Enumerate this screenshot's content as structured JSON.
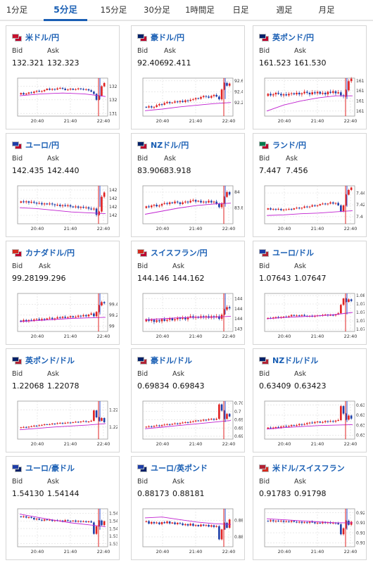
{
  "tabs": [
    {
      "label": "1分足",
      "active": false
    },
    {
      "label": "5分足",
      "active": true
    },
    {
      "label": "15分足",
      "active": false
    },
    {
      "label": "30分足",
      "active": false
    },
    {
      "label": "1時間足",
      "active": false
    },
    {
      "label": "日足",
      "active": false
    },
    {
      "label": "週足",
      "active": false
    },
    {
      "label": "月足",
      "active": false
    }
  ],
  "bid_label": "Bid",
  "ask_label": "Ask",
  "colors": {
    "accent": "#1a5fb4",
    "up": "#e02020",
    "down": "#1f3fa8",
    "ma": "#c020d0",
    "marker_red": "#e02020",
    "marker_blue": "#3050d0"
  },
  "pairs": [
    {
      "name": "米ドル/円",
      "bid": "132.321",
      "ask": "132.323",
      "flag": [
        "#c8102e",
        "#bc002d"
      ],
      "chart_data": {
        "type": "candlestick",
        "x_ticks": [
          "20:40",
          "21:40",
          "22:40"
        ],
        "y_ticks": [
          131.5,
          132,
          132.5
        ],
        "ylim": [
          131.4,
          132.8
        ],
        "start": 132.2,
        "moves": [
          0.05,
          -0.05,
          0.03,
          0.04,
          -0.02,
          0.05,
          0.03,
          -0.03,
          0.02,
          0.04,
          0.05,
          -0.04,
          0.03,
          -0.02,
          0.04,
          0.02,
          -0.03,
          -0.05,
          0.02,
          0.03,
          -0.04,
          0.02,
          0.03,
          -0.02,
          -0.03,
          0.02,
          -0.04,
          -0.05,
          -0.08,
          -0.22,
          0.15,
          0.35,
          0.12
        ],
        "vol": 0.03,
        "ma": [
          132.15,
          132.22,
          132.25,
          132.22,
          132.12
        ]
      }
    },
    {
      "name": "豪ドル/円",
      "bid": "92.406",
      "ask": "92.411",
      "flag": [
        "#012169",
        "#bc002d"
      ],
      "chart_data": {
        "type": "candlestick",
        "x_ticks": [
          "20:40",
          "21:40",
          "22:40"
        ],
        "y_ticks": [
          92.2,
          92.4,
          92.6
        ],
        "ylim": [
          91.95,
          92.65
        ],
        "start": 92.12,
        "moves": [
          -0.01,
          0.02,
          -0.02,
          0.01,
          0.03,
          0.02,
          -0.01,
          0.03,
          0.02,
          -0.02,
          0.01,
          0.02,
          -0.01,
          0.02,
          -0.02,
          0.03,
          -0.01,
          0.02,
          0.01,
          0.02,
          -0.01,
          0.03,
          0.02,
          -0.01,
          -0.02,
          0.03,
          0.02,
          -0.03,
          -0.05,
          0.18,
          0.12,
          -0.05,
          0.04
        ],
        "vol": 0.02,
        "ma": [
          92.05,
          92.08,
          92.12,
          92.15,
          92.18,
          92.2
        ]
      }
    },
    {
      "name": "英ポンド/円",
      "bid": "161.523",
      "ask": "161.530",
      "flag": [
        "#012169",
        "#bc002d"
      ],
      "chart_data": {
        "type": "candlestick",
        "x_ticks": [
          "20:40",
          "21:40",
          "22:40"
        ],
        "y_ticks": [
          161,
          161.2,
          161.4,
          161.6
        ],
        "ylim": [
          160.9,
          161.65
        ],
        "start": 161.3,
        "moves": [
          0.04,
          -0.03,
          0.02,
          0.03,
          -0.02,
          -0.03,
          0.02,
          -0.02,
          0.03,
          0.01,
          -0.02,
          0.03,
          -0.03,
          0.02,
          0.03,
          -0.02,
          -0.03,
          0.04,
          -0.02,
          0.03,
          -0.04,
          0.02,
          -0.03,
          0.05,
          -0.02,
          0.03,
          -0.04,
          0.02,
          -0.06,
          -0.02,
          0.12,
          0.18,
          0.05
        ],
        "vol": 0.03,
        "ma": [
          161.0,
          161.12,
          161.2,
          161.26,
          161.3,
          161.3
        ]
      }
    },
    {
      "name": "ユーロ/円",
      "bid": "142.435",
      "ask": "142.440",
      "flag": [
        "#1f3fa8",
        "#bc002d"
      ],
      "chart_data": {
        "type": "candlestick",
        "x_ticks": [
          "20:40",
          "21:40",
          "22:40"
        ],
        "y_ticks": [
          142,
          142.2,
          142.4,
          142.6
        ],
        "ylim": [
          141.8,
          142.7
        ],
        "start": 142.3,
        "moves": [
          0.03,
          -0.02,
          0.02,
          -0.03,
          0.02,
          -0.02,
          -0.02,
          0.01,
          -0.03,
          0.02,
          -0.02,
          0.02,
          -0.02,
          -0.02,
          0.01,
          -0.03,
          0.02,
          -0.02,
          0.02,
          -0.03,
          -0.02,
          0.02,
          -0.03,
          0.02,
          -0.02,
          0.01,
          -0.03,
          -0.02,
          0.02,
          -0.15,
          0.08,
          0.35,
          0.1
        ],
        "vol": 0.03,
        "ma": [
          142.18,
          142.16,
          142.12,
          142.08,
          142.06,
          142.04
        ]
      }
    },
    {
      "name": "NZドル/円",
      "bid": "83.906",
      "ask": "83.918",
      "flag": [
        "#012169",
        "#bc002d"
      ],
      "chart_data": {
        "type": "candlestick",
        "x_ticks": [
          "20:40",
          "21:40",
          "22:40"
        ],
        "y_ticks": [
          83.8,
          84
        ],
        "ylim": [
          83.6,
          84.08
        ],
        "start": 83.8,
        "moves": [
          0.02,
          -0.01,
          0.02,
          0.01,
          -0.02,
          0.01,
          0.02,
          0.01,
          -0.01,
          0.02,
          -0.01,
          0.02,
          -0.01,
          -0.02,
          0.02,
          0.01,
          -0.01,
          0.02,
          0.01,
          -0.02,
          0.01,
          -0.02,
          0.01,
          -0.01,
          0.02,
          -0.02,
          0.01,
          -0.03,
          -0.04,
          0.05,
          0.08,
          0.06,
          -0.03
        ],
        "vol": 0.015,
        "ma": [
          83.72,
          83.76,
          83.8,
          83.83,
          83.85,
          83.86
        ]
      }
    },
    {
      "name": "ランド/円",
      "bid": "7.447",
      "ask": "7.456",
      "flag": [
        "#007a4d",
        "#bc002d"
      ],
      "chart_data": {
        "type": "candlestick",
        "x_ticks": [
          "20:40",
          "21:40",
          "22:40"
        ],
        "y_ticks": [
          7.4,
          7.42,
          7.44
        ],
        "ylim": [
          7.388,
          7.452
        ],
        "start": 7.412,
        "moves": [
          0.002,
          -0.002,
          0.001,
          -0.001,
          0.001,
          -0.002,
          0.001,
          0.0,
          0.001,
          -0.001,
          0.002,
          0.001,
          -0.001,
          0.001,
          0.002,
          -0.001,
          0.001,
          0.002,
          -0.001,
          0.001,
          0.002,
          0.001,
          -0.001,
          0.001,
          0.002,
          -0.002,
          0.001,
          -0.004,
          -0.01,
          0.01,
          0.018,
          0.008,
          0.004
        ],
        "vol": 0.0015,
        "ma": [
          7.402,
          7.403,
          7.405,
          7.406,
          7.408,
          7.41
        ]
      }
    },
    {
      "name": "カナダドル/円",
      "bid": "99.281",
      "ask": "99.296",
      "flag": [
        "#d52b1e",
        "#bc002d"
      ],
      "chart_data": {
        "type": "candlestick",
        "x_ticks": [
          "20:40",
          "21:40",
          "22:40"
        ],
        "y_ticks": [
          99,
          99.2,
          99.4
        ],
        "ylim": [
          98.9,
          99.6
        ],
        "start": 99.1,
        "moves": [
          -0.02,
          0.03,
          -0.02,
          0.02,
          -0.01,
          0.02,
          0.01,
          -0.02,
          0.02,
          -0.01,
          0.02,
          0.01,
          -0.02,
          0.01,
          0.02,
          -0.01,
          0.02,
          -0.02,
          0.01,
          0.02,
          -0.02,
          0.01,
          0.02,
          -0.01,
          0.02,
          -0.02,
          0.03,
          0.02,
          -0.05,
          0.08,
          0.12,
          0.06,
          -0.02
        ],
        "vol": 0.02,
        "ma": [
          99.08,
          99.1,
          99.12,
          99.14,
          99.15,
          99.16
        ]
      }
    },
    {
      "name": "スイスフラン/円",
      "bid": "144.146",
      "ask": "144.162",
      "flag": [
        "#d52b1e",
        "#bc002d"
      ],
      "chart_data": {
        "type": "candlestick",
        "x_ticks": [
          "20:40",
          "21:40",
          "22:40"
        ],
        "y_ticks": [
          143.8,
          144,
          144.2,
          144.4
        ],
        "ylim": [
          143.75,
          144.5
        ],
        "start": 143.95,
        "moves": [
          0.04,
          -0.03,
          0.02,
          -0.04,
          0.03,
          -0.02,
          0.04,
          -0.03,
          0.02,
          0.03,
          -0.04,
          0.02,
          0.03,
          -0.02,
          0.02,
          -0.03,
          0.04,
          0.02,
          -0.03,
          0.02,
          -0.02,
          0.03,
          -0.02,
          0.02,
          -0.03,
          0.03,
          -0.02,
          0.02,
          -0.05,
          0.08,
          0.1,
          0.05,
          -0.02
        ],
        "vol": 0.03,
        "ma": [
          143.98,
          144.0,
          144.02,
          144.03,
          144.03,
          144.05
        ]
      }
    },
    {
      "name": "ユーロ/ドル",
      "bid": "1.07643",
      "ask": "1.07647",
      "flag": [
        "#1f3fa8",
        "#b22234"
      ],
      "chart_data": {
        "type": "candlestick",
        "x_ticks": [
          "20:40",
          "21:40",
          "22:40"
        ],
        "y_ticks": [
          1.072,
          1.074,
          1.076,
          1.078,
          1.08
        ],
        "ylim": [
          1.0715,
          1.0805
        ],
        "start": 1.0745,
        "moves": [
          0.0002,
          -0.0001,
          0.0002,
          0.0001,
          -0.0002,
          0.0002,
          0.0001,
          -0.0001,
          0.0002,
          0.0003,
          -0.0002,
          0.0001,
          -0.0001,
          0.0002,
          -0.0002,
          -0.0001,
          0.0001,
          -0.0002,
          0.0002,
          0.0001,
          -0.0001,
          0.0002,
          0.0001,
          -0.0002,
          0.0001,
          -0.0001,
          0.0002,
          0.0003,
          0.002,
          0.0015,
          -0.0008,
          0.0006,
          -0.0004
        ],
        "vol": 0.0002,
        "ma": [
          1.0745,
          1.0748,
          1.075,
          1.0752,
          1.0755,
          1.076
        ]
      }
    },
    {
      "name": "英ポンド/ドル",
      "bid": "1.22068",
      "ask": "1.22078",
      "flag": [
        "#012169",
        "#b22234"
      ],
      "chart_data": {
        "type": "candlestick",
        "x_ticks": [
          "20:40",
          "21:40",
          "22:40"
        ],
        "y_ticks": [
          1.22,
          1.225
        ],
        "ylim": [
          1.2165,
          1.2275
        ],
        "start": 1.2197,
        "moves": [
          0.0002,
          0.0001,
          -0.0001,
          0.0002,
          0.0001,
          0.0002,
          -0.0001,
          0.0002,
          0.0001,
          0.0002,
          -0.0001,
          0.0001,
          0.0002,
          -0.0001,
          0.0002,
          0.0001,
          -0.0002,
          0.0002,
          0.0001,
          -0.0001,
          0.0002,
          0.0001,
          -0.0001,
          0.0002,
          0.0001,
          -0.0002,
          0.0001,
          0.0002,
          0.003,
          -0.002,
          -0.001,
          0.0008,
          -0.0012
        ],
        "vol": 0.0002,
        "ma": [
          1.2192,
          1.2196,
          1.22,
          1.2203,
          1.2206,
          1.221
        ]
      }
    },
    {
      "name": "豪ドル/ドル",
      "bid": "0.69834",
      "ask": "0.69843",
      "flag": [
        "#012169",
        "#b22234"
      ],
      "chart_data": {
        "type": "candlestick",
        "x_ticks": [
          "20:40",
          "21:40",
          "22:40"
        ],
        "y_ticks": [
          0.694,
          0.696,
          0.698,
          0.7,
          0.702
        ],
        "ylim": [
          0.6933,
          0.7025
        ],
        "start": 0.6962,
        "moves": [
          0.0001,
          0.0001,
          -0.0001,
          0.0002,
          0.0001,
          -0.0001,
          0.0002,
          0.0001,
          0.0001,
          -0.0001,
          0.0002,
          0.0001,
          -0.0001,
          0.0002,
          0.0001,
          0.0001,
          -0.0001,
          0.0002,
          0.0001,
          0.0002,
          -0.0001,
          0.0001,
          0.0002,
          -0.0001,
          0.0002,
          0.0001,
          -0.0002,
          0.0002,
          0.0035,
          -0.0015,
          -0.002,
          0.0012,
          -0.0006
        ],
        "vol": 0.0002,
        "ma": [
          0.6958,
          0.6962,
          0.6966,
          0.697,
          0.6974,
          0.6978
        ]
      }
    },
    {
      "name": "NZドル/ドル",
      "bid": "0.63409",
      "ask": "0.63423",
      "flag": [
        "#012169",
        "#b22234"
      ],
      "chart_data": {
        "type": "candlestick",
        "x_ticks": [
          "20:40",
          "21:40",
          "22:40"
        ],
        "y_ticks": [
          0.632,
          0.634,
          0.636,
          0.638
        ],
        "ylim": [
          0.6312,
          0.6388
        ],
        "start": 0.6333,
        "moves": [
          0.0002,
          -0.0001,
          0.0001,
          0.0001,
          -0.0001,
          0.0002,
          0.0001,
          -0.0001,
          0.0001,
          0.0002,
          -0.0001,
          0.0001,
          0.0002,
          -0.0001,
          0.0001,
          0.0002,
          0.0001,
          -0.0001,
          0.0002,
          0.0001,
          -0.0002,
          0.0001,
          0.0002,
          -0.0001,
          0.0001,
          -0.0001,
          0.0002,
          0.0001,
          0.0028,
          -0.0015,
          -0.0012,
          0.0008,
          -0.0006
        ],
        "vol": 0.0002,
        "ma": [
          0.6332,
          0.6335,
          0.6337,
          0.6339,
          0.634,
          0.6341
        ]
      }
    },
    {
      "name": "ユーロ/豪ドル",
      "bid": "1.54130",
      "ask": "1.54144",
      "flag": [
        "#1f3fa8",
        "#012169"
      ],
      "chart_data": {
        "type": "candlestick",
        "x_ticks": [
          "20:40",
          "21:40",
          "22:40"
        ],
        "y_ticks": [
          1.536,
          1.538,
          1.54,
          1.542,
          1.544
        ],
        "ylim": [
          1.5352,
          1.5452
        ],
        "start": 1.5432,
        "moves": [
          -0.0002,
          0.0002,
          -0.0003,
          0.0001,
          -0.0002,
          -0.0004,
          0.0002,
          -0.0003,
          -0.0002,
          0.0003,
          -0.0002,
          0.0001,
          -0.0003,
          0.0002,
          -0.0002,
          0.0001,
          -0.0002,
          0.0003,
          -0.0002,
          -0.0001,
          0.0002,
          -0.0003,
          0.0002,
          -0.0002,
          0.0001,
          -0.0002,
          0.0002,
          -0.0003,
          -0.003,
          0.002,
          0.0015,
          -0.0012,
          0.001
        ],
        "vol": 0.0002,
        "ma": [
          1.5438,
          1.543,
          1.5422,
          1.5415,
          1.541,
          1.5405
        ]
      }
    },
    {
      "name": "ユーロ/英ポンド",
      "bid": "0.88173",
      "ask": "0.88181",
      "flag": [
        "#1f3fa8",
        "#012169"
      ],
      "chart_data": {
        "type": "candlestick",
        "x_ticks": [
          "20:40",
          "21:40",
          "22:40"
        ],
        "y_ticks": [
          0.881,
          0.882
        ],
        "ylim": [
          0.8804,
          0.8827
        ],
        "start": 0.8819,
        "moves": [
          5e-05,
          -0.00015,
          0.0001,
          -8e-05,
          5e-05,
          -0.0001,
          0.00012,
          -6e-05,
          0.0001,
          -0.00012,
          6e-05,
          -0.0001,
          8e-05,
          -4e-05,
          -0.0001,
          6e-05,
          -8e-05,
          0.0001,
          -0.00012,
          5e-05,
          -8e-05,
          0.0001,
          -6e-05,
          4e-05,
          -0.0001,
          8e-05,
          -0.0001,
          5e-05,
          -0.0008,
          0.0006,
          0.0004,
          -0.0003,
          0.0005
        ],
        "vol": 5e-05,
        "ma": [
          0.88215,
          0.8822,
          0.88205,
          0.8819,
          0.8818,
          0.88175
        ]
      }
    },
    {
      "name": "米ドル/スイスフラン",
      "bid": "0.91783",
      "ask": "0.91798",
      "flag": [
        "#b22234",
        "#d52b1e"
      ],
      "chart_data": {
        "type": "candlestick",
        "x_ticks": [
          "20:40",
          "21:40",
          "22:40"
        ],
        "y_ticks": [
          0.914,
          0.916,
          0.918,
          0.92
        ],
        "ylim": [
          0.9132,
          0.9208
        ],
        "start": 0.9184,
        "moves": [
          -0.0001,
          0.0002,
          -0.0002,
          0.0001,
          -0.0001,
          0.0001,
          -0.0002,
          0.0001,
          -0.0001,
          0.0002,
          -0.0002,
          -0.0001,
          0.0001,
          -0.0002,
          0.0001,
          -0.0001,
          0.0002,
          -0.0001,
          -0.0002,
          0.0001,
          -0.0001,
          0.0002,
          -0.0001,
          0.0001,
          -0.0002,
          0.0001,
          -0.0001,
          -0.0002,
          -0.002,
          0.0012,
          0.0015,
          -0.0008,
          0.0006
        ],
        "vol": 0.0002,
        "ma": [
          0.9188,
          0.9186,
          0.9184,
          0.9182,
          0.918,
          0.918
        ]
      }
    }
  ]
}
